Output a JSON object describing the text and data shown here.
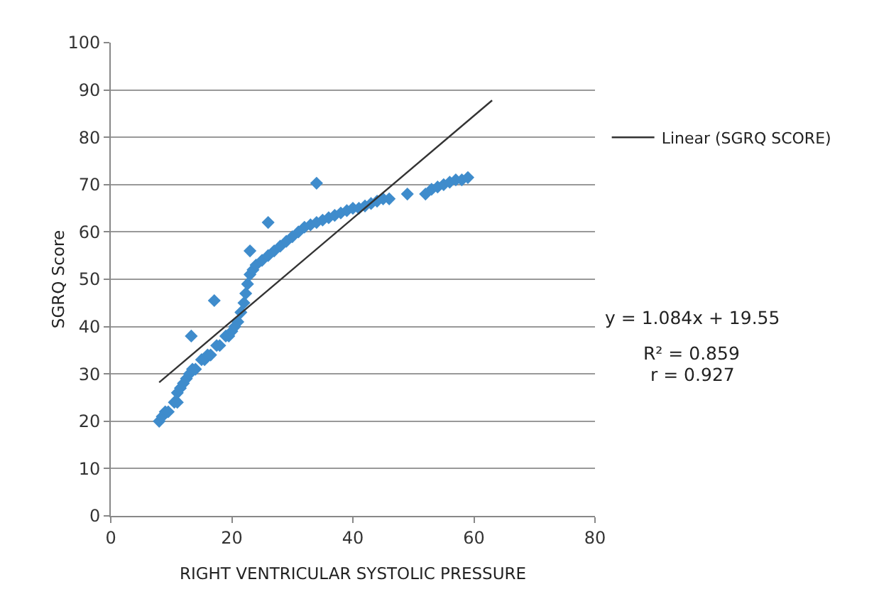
{
  "chart_data": {
    "type": "scatter",
    "xlabel": "RIGHT VENTRICULAR SYSTOLIC PRESSURE",
    "ylabel": "SGRQ Score",
    "xlim": [
      0,
      80
    ],
    "xticks": [
      0,
      20,
      40,
      60,
      80
    ],
    "ylim": [
      0,
      100
    ],
    "yticks": [
      0,
      10,
      20,
      30,
      40,
      50,
      60,
      70,
      80,
      90,
      100
    ],
    "grid": "y",
    "legend": "right",
    "marker": "diamond",
    "annotations": [
      "y = 1.084x + 19.55",
      "R² = 0.859",
      "r = 0.927"
    ],
    "series": [
      {
        "color": "#3f8ccc",
        "x": [
          8,
          8.5,
          9,
          9.5,
          10.5,
          11,
          11,
          11.5,
          12,
          12.5,
          13,
          13.5,
          14,
          15,
          15.5,
          16,
          16.5,
          17.5,
          18,
          19,
          19.5,
          20,
          20.5,
          21,
          21.5,
          22,
          22.3,
          22.6,
          23,
          23.5,
          24,
          25,
          26,
          27,
          28,
          29,
          30,
          31,
          32,
          33,
          34,
          35,
          36,
          37,
          38,
          39,
          40,
          41,
          42,
          43,
          44,
          45,
          46,
          49,
          52,
          53,
          54,
          55,
          56,
          57,
          58,
          59,
          13.3,
          17.1,
          23,
          26,
          34
        ],
        "values": [
          20,
          21,
          22,
          22,
          24,
          24,
          26,
          27,
          28,
          29,
          30,
          31,
          31,
          33,
          33,
          34,
          34,
          36,
          36,
          38,
          38,
          39,
          40,
          41,
          43,
          45,
          47,
          49,
          51,
          52,
          53,
          54,
          55,
          56,
          57,
          58,
          59,
          60,
          61,
          61.5,
          62,
          62.5,
          63,
          63.5,
          64,
          64.5,
          65,
          65,
          65.5,
          66,
          66.5,
          67,
          67,
          68,
          68,
          69,
          69.5,
          70,
          70.5,
          71,
          71,
          71.5,
          38,
          45.5,
          56,
          62,
          70.3
        ]
      },
      {
        "name": "Linear (SGRQ SCORE)",
        "color": "#333333",
        "type": "line",
        "marker": "none",
        "x": [
          8,
          63
        ],
        "values": [
          28.2,
          87.8
        ]
      }
    ]
  }
}
